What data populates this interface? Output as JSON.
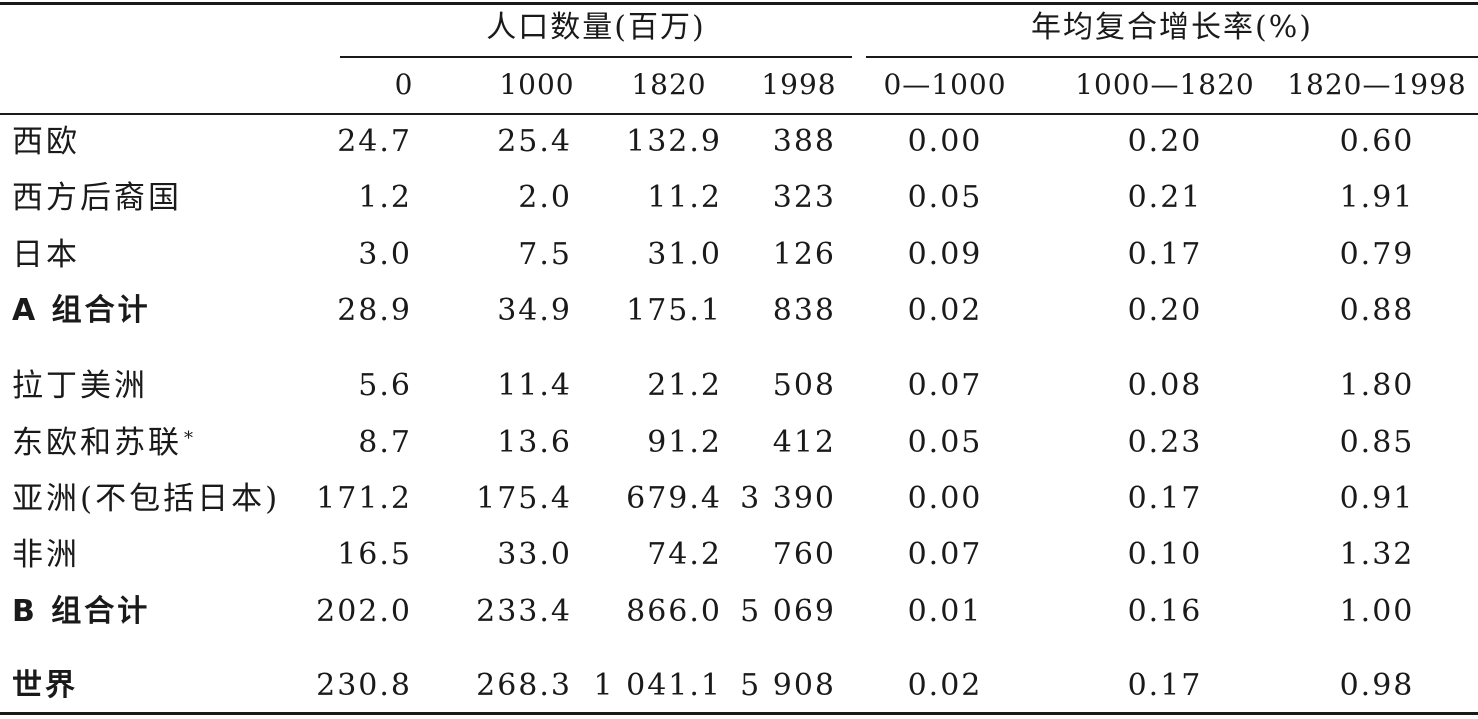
{
  "table": {
    "group_headers": [
      "人口数量(百万)",
      "年均复合增长率(%)"
    ],
    "column_headers": [
      "0",
      "1000",
      "1820",
      "1998",
      "0—1000",
      "1000—1820",
      "1820—1998"
    ],
    "rows": [
      {
        "label": "西欧",
        "bold": false,
        "values": [
          "24.7",
          "25.4",
          "132.9",
          "388",
          "0.00",
          "0.20",
          "0.60"
        ]
      },
      {
        "label": "西方后裔国",
        "bold": false,
        "values": [
          "1.2",
          "2.0",
          "11.2",
          "323",
          "0.05",
          "0.21",
          "1.91"
        ]
      },
      {
        "label": "日本",
        "bold": false,
        "values": [
          "3.0",
          "7.5",
          "31.0",
          "126",
          "0.09",
          "0.17",
          "0.79"
        ]
      },
      {
        "label": "A 组合计",
        "bold": true,
        "values": [
          "28.9",
          "34.9",
          "175.1",
          "838",
          "0.02",
          "0.20",
          "0.88"
        ]
      },
      {
        "label": "拉丁美洲",
        "bold": false,
        "values": [
          "5.6",
          "11.4",
          "21.2",
          "508",
          "0.07",
          "0.08",
          "1.80"
        ]
      },
      {
        "label": "东欧和苏联",
        "mark": "*",
        "bold": false,
        "values": [
          "8.7",
          "13.6",
          "91.2",
          "412",
          "0.05",
          "0.23",
          "0.85"
        ]
      },
      {
        "label": "亚洲(不包括日本)",
        "bold": false,
        "values": [
          "171.2",
          "175.4",
          "679.4",
          "3 390",
          "0.00",
          "0.17",
          "0.91"
        ]
      },
      {
        "label": "非洲",
        "bold": false,
        "values": [
          "16.5",
          "33.0",
          "74.2",
          "760",
          "0.07",
          "0.10",
          "1.32"
        ]
      },
      {
        "label": "B 组合计",
        "bold": true,
        "values": [
          "202.0",
          "233.4",
          "866.0",
          "5 069",
          "0.01",
          "0.16",
          "1.00"
        ]
      },
      {
        "label": "世界",
        "bold": true,
        "values": [
          "230.8",
          "268.3",
          "1 041.1",
          "5 908",
          "0.02",
          "0.17",
          "0.98"
        ]
      }
    ]
  }
}
